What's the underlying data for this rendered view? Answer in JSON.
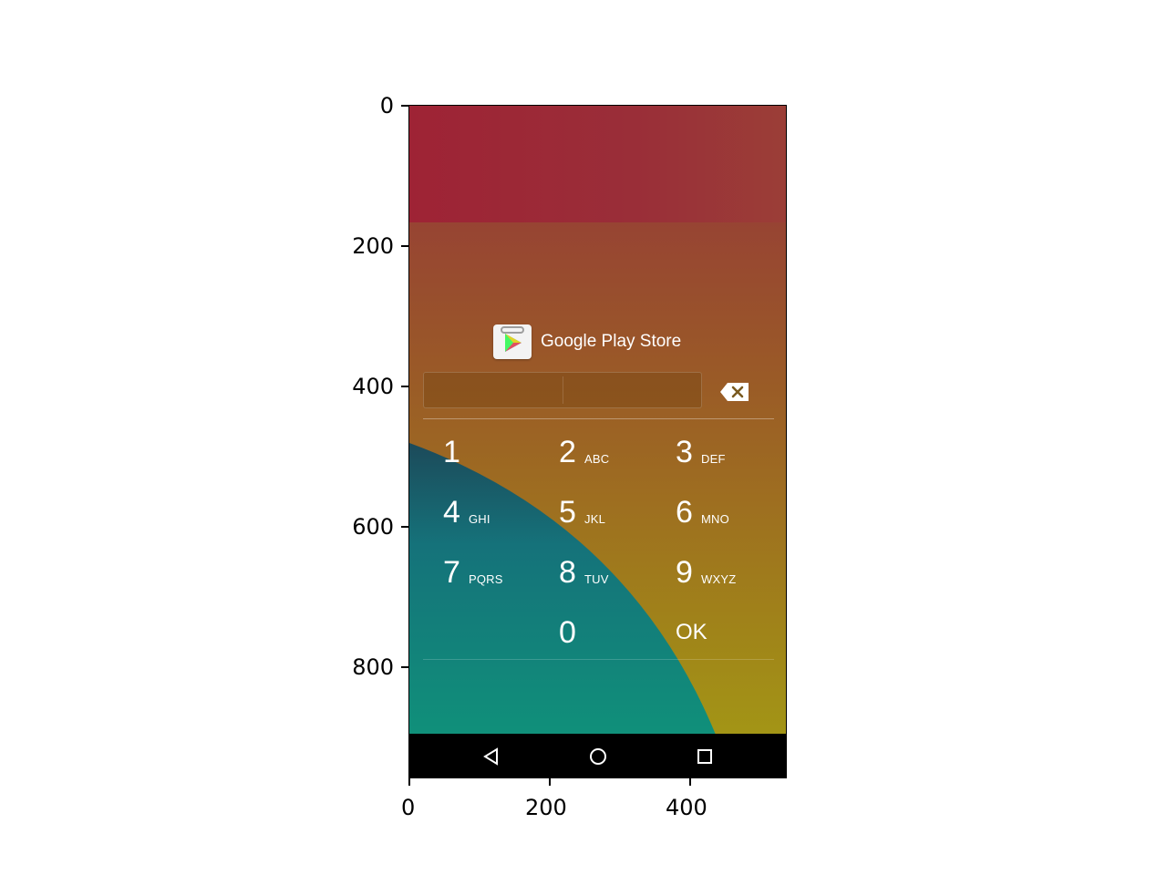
{
  "axes": {
    "y_ticks": [
      "0",
      "200",
      "400",
      "600",
      "800"
    ],
    "x_ticks": [
      "0",
      "200",
      "400"
    ]
  },
  "app": {
    "name": "Google Play Store",
    "icon": "google-play-store-icon"
  },
  "pin_field": {
    "value": ""
  },
  "backspace": {
    "icon": "backspace-icon"
  },
  "keypad": {
    "keys": [
      {
        "digit": "1",
        "letters": ""
      },
      {
        "digit": "2",
        "letters": "ABC"
      },
      {
        "digit": "3",
        "letters": "DEF"
      },
      {
        "digit": "4",
        "letters": "GHI"
      },
      {
        "digit": "5",
        "letters": "JKL"
      },
      {
        "digit": "6",
        "letters": "MNO"
      },
      {
        "digit": "7",
        "letters": "PQRS"
      },
      {
        "digit": "8",
        "letters": "TUV"
      },
      {
        "digit": "9",
        "letters": "WXYZ"
      },
      {
        "digit": "0",
        "letters": ""
      },
      {
        "digit": "OK",
        "letters": ""
      }
    ]
  },
  "nav": {
    "back_icon": "back-triangle-icon",
    "home_icon": "home-circle-icon",
    "recents_icon": "recents-square-icon"
  },
  "colors": {
    "status_bar": "#9e2335",
    "wallpaper_top": "#974433",
    "wallpaper_bottom": "#a39516",
    "arc_teal": "#12857c",
    "nav_bar": "#000000"
  }
}
